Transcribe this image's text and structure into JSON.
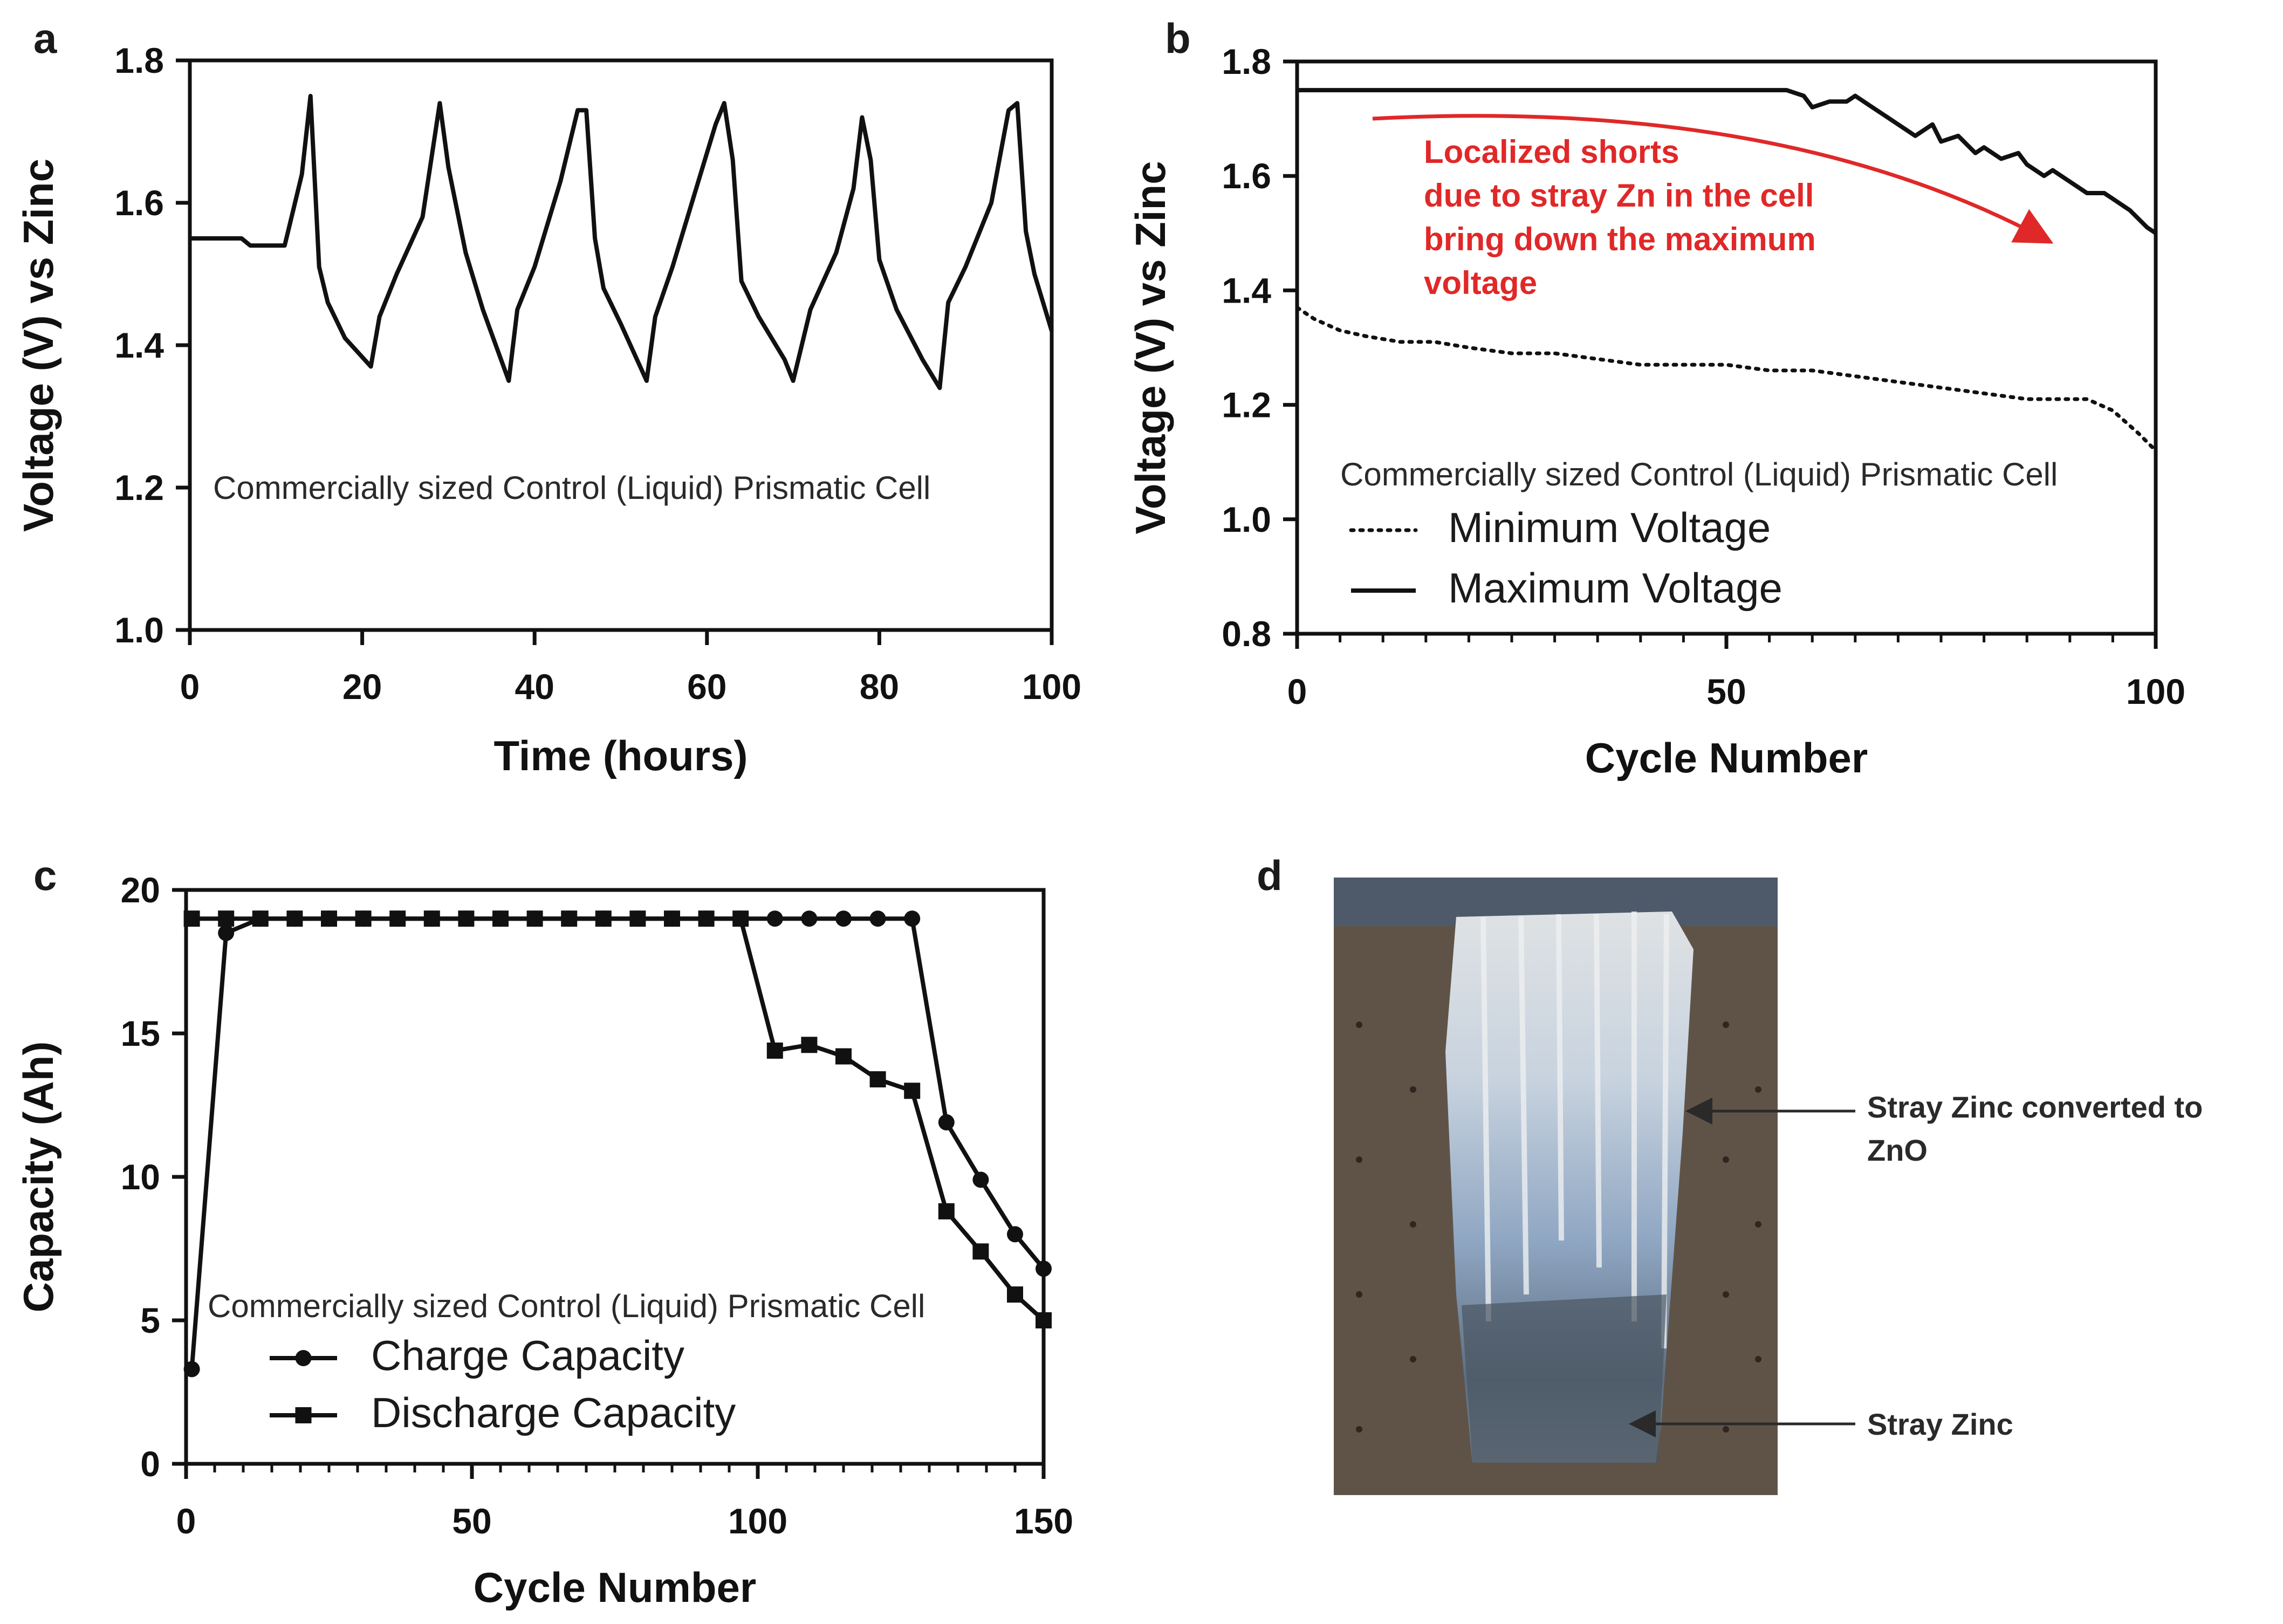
{
  "panels": {
    "a": {
      "letter": "a"
    },
    "b": {
      "letter": "b"
    },
    "c": {
      "letter": "c"
    },
    "d": {
      "letter": "d"
    }
  },
  "photo": {
    "label_top_line1": "Stray Zinc converted to",
    "label_top_line2": "ZnO",
    "label_bottom": "Stray Zinc",
    "colors": {
      "background": "#5f5348",
      "deposit_light": "#d9dcdf",
      "deposit_blue": "#8fa6c2",
      "zinc_dark": "#4a5561"
    }
  },
  "colors": {
    "line": "#111111",
    "annotation": "#e02828"
  },
  "chart_data": [
    {
      "panel": "a",
      "type": "line",
      "xlabel": "Time (hours)",
      "ylabel": "Voltage (V) vs Zinc",
      "xlim": [
        0,
        100
      ],
      "ylim": [
        1.0,
        1.8
      ],
      "xticks": [
        "0",
        "20",
        "40",
        "60",
        "80",
        "100"
      ],
      "yticks": [
        "1.0",
        "1.2",
        "1.4",
        "1.6",
        "1.8"
      ],
      "annotation": "Commercially sized Control (Liquid) Prismatic Cell",
      "series": [
        {
          "x": [
            0,
            6,
            7,
            11,
            12,
            13,
            14,
            15,
            16,
            18,
            21,
            22,
            24,
            27,
            29,
            30,
            32,
            34,
            37,
            38,
            40,
            43,
            45,
            46,
            47,
            48,
            50,
            53,
            54,
            56,
            59,
            61,
            62,
            63,
            64,
            66,
            69,
            70,
            72,
            75,
            77,
            78,
            79,
            80,
            82,
            85,
            87,
            88,
            90,
            93,
            95,
            96,
            97,
            98,
            100
          ],
          "y": [
            1.55,
            1.55,
            1.54,
            1.54,
            1.59,
            1.64,
            1.75,
            1.51,
            1.46,
            1.41,
            1.37,
            1.44,
            1.5,
            1.58,
            1.74,
            1.65,
            1.53,
            1.45,
            1.35,
            1.45,
            1.51,
            1.63,
            1.73,
            1.73,
            1.55,
            1.48,
            1.43,
            1.35,
            1.44,
            1.51,
            1.63,
            1.71,
            1.74,
            1.66,
            1.49,
            1.44,
            1.38,
            1.35,
            1.45,
            1.53,
            1.62,
            1.72,
            1.66,
            1.52,
            1.45,
            1.38,
            1.34,
            1.46,
            1.51,
            1.6,
            1.73,
            1.74,
            1.56,
            1.5,
            1.42
          ]
        }
      ]
    },
    {
      "panel": "b",
      "type": "line",
      "xlabel": "Cycle Number",
      "ylabel": "Voltage (V) vs Zinc",
      "xlim": [
        0,
        100
      ],
      "ylim": [
        0.8,
        1.8
      ],
      "xticks": [
        "0",
        "50",
        "100"
      ],
      "yticks": [
        "0.8",
        "1.0",
        "1.2",
        "1.4",
        "1.6",
        "1.8"
      ],
      "annotation": "Commercially sized Control (Liquid) Prismatic Cell",
      "arrow_note": [
        "Localized shorts",
        "due to stray Zn in the cell",
        "bring down the maximum",
        "voltage"
      ],
      "legend_position": "bottom-left",
      "series": [
        {
          "name": "Minimum Voltage",
          "style": "dotted",
          "x": [
            0,
            2,
            5,
            8,
            12,
            16,
            20,
            25,
            30,
            35,
            40,
            45,
            50,
            55,
            60,
            65,
            70,
            75,
            80,
            85,
            88,
            92,
            95,
            98,
            100
          ],
          "y": [
            1.37,
            1.35,
            1.33,
            1.32,
            1.31,
            1.31,
            1.3,
            1.29,
            1.29,
            1.28,
            1.27,
            1.27,
            1.27,
            1.26,
            1.26,
            1.25,
            1.24,
            1.23,
            1.22,
            1.21,
            1.21,
            1.21,
            1.19,
            1.15,
            1.12
          ]
        },
        {
          "name": "Maximum Voltage",
          "style": "solid",
          "x": [
            0,
            10,
            20,
            30,
            40,
            50,
            55,
            57,
            59,
            60,
            62,
            64,
            65,
            67,
            69,
            70,
            72,
            74,
            75,
            77,
            79,
            80,
            82,
            84,
            85,
            87,
            88,
            90,
            92,
            94,
            95,
            97,
            99,
            100
          ],
          "y": [
            1.75,
            1.75,
            1.75,
            1.75,
            1.75,
            1.75,
            1.75,
            1.75,
            1.74,
            1.72,
            1.73,
            1.73,
            1.74,
            1.72,
            1.7,
            1.69,
            1.67,
            1.69,
            1.66,
            1.67,
            1.64,
            1.65,
            1.63,
            1.64,
            1.62,
            1.6,
            1.61,
            1.59,
            1.57,
            1.57,
            1.56,
            1.54,
            1.51,
            1.5
          ]
        }
      ]
    },
    {
      "panel": "c",
      "type": "line",
      "xlabel": "Cycle Number",
      "ylabel": "Capacity (Ah)",
      "xlim": [
        0,
        150
      ],
      "ylim": [
        0,
        20
      ],
      "xticks": [
        "0",
        "50",
        "100",
        "150"
      ],
      "yticks": [
        "0",
        "5",
        "10",
        "15",
        "20"
      ],
      "annotation": "Commercially sized Control (Liquid) Prismatic Cell",
      "legend_position": "bottom-left",
      "series": [
        {
          "name": "Charge Capacity",
          "marker": "circle",
          "x": [
            1,
            7,
            13,
            19,
            25,
            31,
            37,
            43,
            49,
            55,
            61,
            67,
            73,
            79,
            85,
            91,
            97,
            103,
            109,
            115,
            121,
            127,
            133,
            139,
            145,
            150
          ],
          "y": [
            3.3,
            18.5,
            19,
            19,
            19,
            19,
            19,
            19,
            19,
            19,
            19,
            19,
            19,
            19,
            19,
            19,
            19,
            19,
            19,
            19,
            19,
            19,
            11.9,
            9.9,
            8.0,
            6.8
          ]
        },
        {
          "name": "Discharge Capacity",
          "marker": "square",
          "x": [
            1,
            7,
            13,
            19,
            25,
            31,
            37,
            43,
            49,
            55,
            61,
            67,
            73,
            79,
            85,
            91,
            97,
            103,
            109,
            115,
            121,
            127,
            133,
            139,
            145,
            150
          ],
          "y": [
            19,
            19,
            19,
            19,
            19,
            19,
            19,
            19,
            19,
            19,
            19,
            19,
            19,
            19,
            19,
            19,
            19,
            14.4,
            14.6,
            14.2,
            13.4,
            13.0,
            8.8,
            7.4,
            5.9,
            5.0
          ]
        }
      ]
    }
  ]
}
